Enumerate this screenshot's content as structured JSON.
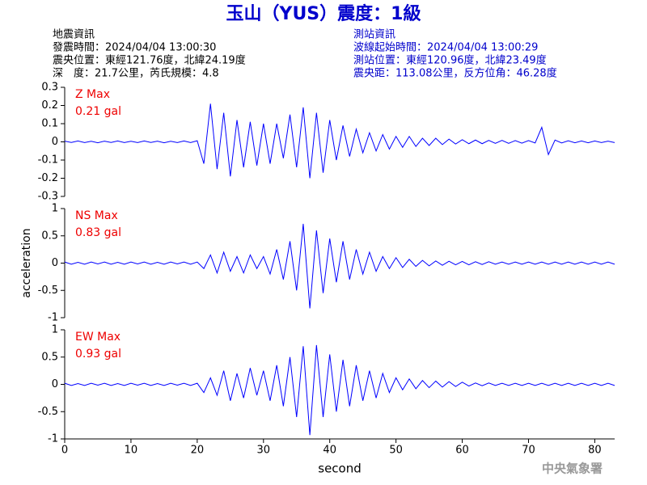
{
  "title": "玉山（YUS）震度：1級",
  "event_info": [
    "地震資訊",
    "發震時間：2024/04/04 13:00:30",
    "震央位置：東經121.76度，北緯24.19度",
    "深　度：21.7公里，芮氏規模：4.8"
  ],
  "station_info": [
    "測站資訊",
    "波線起始時間：2024/04/04 13:00:29",
    "測站位置：東經120.96度，北緯23.49度",
    "震央距：113.08公里，反方位角：46.28度"
  ],
  "footer": "中央氣象署",
  "chart_data": [
    {
      "type": "line",
      "annotations": [
        "Z Max",
        "0.21 gal"
      ],
      "color": "#0000ff",
      "ylim": [
        -0.3,
        0.3
      ],
      "yticks": [
        -0.3,
        -0.2,
        -0.1,
        0,
        0.1,
        0.2,
        0.3
      ],
      "xlim": [
        0,
        83
      ],
      "x": [
        0,
        1,
        2,
        3,
        4,
        5,
        6,
        7,
        8,
        9,
        10,
        11,
        12,
        13,
        14,
        15,
        16,
        17,
        18,
        19,
        20,
        21,
        22,
        23,
        24,
        25,
        26,
        27,
        28,
        29,
        30,
        31,
        32,
        33,
        34,
        35,
        36,
        37,
        38,
        39,
        40,
        41,
        42,
        43,
        44,
        45,
        46,
        47,
        48,
        49,
        50,
        51,
        52,
        53,
        54,
        55,
        56,
        57,
        58,
        59,
        60,
        61,
        62,
        63,
        64,
        65,
        66,
        67,
        68,
        69,
        70,
        71,
        72,
        73,
        74,
        75,
        76,
        77,
        78,
        79,
        80,
        81,
        82,
        83
      ],
      "values": [
        0.004,
        -0.003,
        0.005,
        -0.004,
        0.003,
        -0.005,
        0.004,
        -0.003,
        0.005,
        -0.004,
        0.003,
        -0.004,
        0.005,
        -0.003,
        0.004,
        -0.005,
        0.003,
        -0.004,
        0.005,
        -0.004,
        0.006,
        -0.12,
        0.21,
        -0.15,
        0.16,
        -0.19,
        0.12,
        -0.14,
        0.11,
        -0.13,
        0.1,
        -0.12,
        0.1,
        -0.09,
        0.15,
        -0.14,
        0.19,
        -0.2,
        0.16,
        -0.17,
        0.12,
        -0.1,
        0.09,
        -0.08,
        0.07,
        -0.06,
        0.05,
        -0.05,
        0.04,
        -0.04,
        0.03,
        -0.03,
        0.03,
        -0.025,
        0.02,
        -0.02,
        0.02,
        -0.015,
        0.015,
        -0.012,
        0.012,
        -0.01,
        0.01,
        -0.01,
        0.008,
        -0.008,
        0.008,
        -0.008,
        0.007,
        -0.007,
        0.007,
        -0.006,
        0.08,
        -0.07,
        0.01,
        -0.006,
        0.006,
        -0.005,
        0.005,
        -0.005,
        0.005,
        -0.004,
        0.004,
        -0.004
      ]
    },
    {
      "type": "line",
      "annotations": [
        "NS Max",
        "0.83 gal"
      ],
      "color": "#0000ff",
      "ylim": [
        -1,
        1
      ],
      "yticks": [
        -1,
        -0.5,
        0,
        0.5,
        1
      ],
      "xlim": [
        0,
        83
      ],
      "ylabel": "acceleration",
      "x": [
        0,
        1,
        2,
        3,
        4,
        5,
        6,
        7,
        8,
        9,
        10,
        11,
        12,
        13,
        14,
        15,
        16,
        17,
        18,
        19,
        20,
        21,
        22,
        23,
        24,
        25,
        26,
        27,
        28,
        29,
        30,
        31,
        32,
        33,
        34,
        35,
        36,
        37,
        38,
        39,
        40,
        41,
        42,
        43,
        44,
        45,
        46,
        47,
        48,
        49,
        50,
        51,
        52,
        53,
        54,
        55,
        56,
        57,
        58,
        59,
        60,
        61,
        62,
        63,
        64,
        65,
        66,
        67,
        68,
        69,
        70,
        71,
        72,
        73,
        74,
        75,
        76,
        77,
        78,
        79,
        80,
        81,
        82,
        83
      ],
      "values": [
        0.02,
        -0.02,
        0.015,
        -0.02,
        0.02,
        -0.015,
        0.02,
        -0.02,
        0.015,
        -0.02,
        0.02,
        -0.015,
        0.02,
        -0.02,
        0.015,
        -0.02,
        0.02,
        -0.015,
        0.02,
        -0.02,
        0.02,
        -0.1,
        0.15,
        -0.18,
        0.2,
        -0.15,
        0.12,
        -0.18,
        0.15,
        -0.1,
        0.12,
        -0.2,
        0.25,
        -0.3,
        0.4,
        -0.5,
        0.72,
        -0.83,
        0.6,
        -0.55,
        0.45,
        -0.35,
        0.4,
        -0.3,
        0.25,
        -0.2,
        0.2,
        -0.15,
        0.12,
        -0.1,
        0.1,
        -0.08,
        0.07,
        -0.06,
        0.05,
        -0.05,
        0.04,
        -0.04,
        0.035,
        -0.03,
        0.03,
        -0.03,
        0.025,
        -0.025,
        0.025,
        -0.02,
        0.02,
        -0.02,
        0.02,
        -0.02,
        0.02,
        -0.02,
        0.02,
        -0.02,
        0.02,
        -0.02,
        0.02,
        -0.02,
        0.02,
        -0.02,
        0.02,
        -0.02,
        0.02,
        -0.02
      ]
    },
    {
      "type": "line",
      "annotations": [
        "EW Max",
        "0.93 gal"
      ],
      "color": "#0000ff",
      "ylim": [
        -1,
        1
      ],
      "yticks": [
        -1,
        -0.5,
        0,
        0.5,
        1
      ],
      "xlim": [
        0,
        83
      ],
      "xticks": [
        0,
        10,
        20,
        30,
        40,
        50,
        60,
        70,
        80
      ],
      "xlabel": "second",
      "x": [
        0,
        1,
        2,
        3,
        4,
        5,
        6,
        7,
        8,
        9,
        10,
        11,
        12,
        13,
        14,
        15,
        16,
        17,
        18,
        19,
        20,
        21,
        22,
        23,
        24,
        25,
        26,
        27,
        28,
        29,
        30,
        31,
        32,
        33,
        34,
        35,
        36,
        37,
        38,
        39,
        40,
        41,
        42,
        43,
        44,
        45,
        46,
        47,
        48,
        49,
        50,
        51,
        52,
        53,
        54,
        55,
        56,
        57,
        58,
        59,
        60,
        61,
        62,
        63,
        64,
        65,
        66,
        67,
        68,
        69,
        70,
        71,
        72,
        73,
        74,
        75,
        76,
        77,
        78,
        79,
        80,
        81,
        82,
        83
      ],
      "values": [
        0.02,
        -0.02,
        0.015,
        -0.02,
        0.02,
        -0.015,
        0.02,
        -0.02,
        0.015,
        -0.02,
        0.02,
        -0.015,
        0.02,
        -0.02,
        0.015,
        -0.02,
        0.02,
        -0.015,
        0.02,
        -0.02,
        0.02,
        -0.15,
        0.12,
        -0.2,
        0.25,
        -0.3,
        0.2,
        -0.25,
        0.3,
        -0.2,
        0.25,
        -0.3,
        0.35,
        -0.4,
        0.5,
        -0.6,
        0.7,
        -0.93,
        0.72,
        -0.6,
        0.55,
        -0.5,
        0.45,
        -0.4,
        0.35,
        -0.3,
        0.25,
        -0.25,
        0.2,
        -0.15,
        0.12,
        -0.1,
        0.1,
        -0.08,
        0.07,
        -0.06,
        0.06,
        -0.05,
        0.05,
        -0.04,
        0.04,
        -0.03,
        0.025,
        -0.025,
        0.025,
        -0.02,
        0.02,
        -0.02,
        0.02,
        -0.02,
        0.02,
        -0.02,
        0.02,
        -0.02,
        0.02,
        -0.02,
        0.02,
        -0.02,
        0.02,
        -0.02,
        0.02,
        -0.02,
        0.02,
        -0.02
      ]
    }
  ]
}
